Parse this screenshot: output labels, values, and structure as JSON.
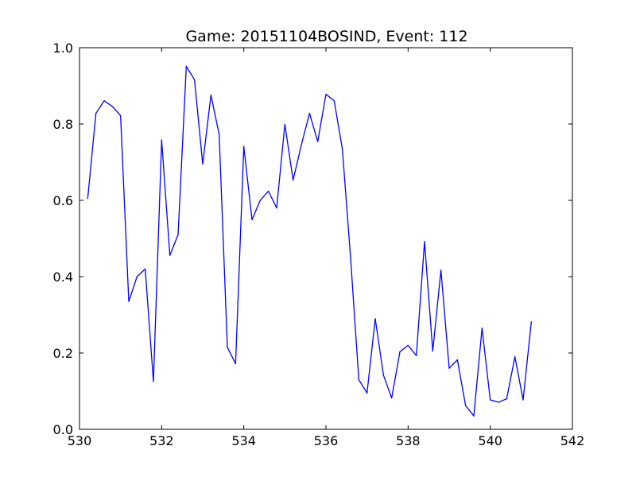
{
  "chart_data": {
    "type": "line",
    "title": "Game: 20151104BOSIND, Event: 112",
    "xlabel": "",
    "ylabel": "",
    "xlim": [
      530,
      542
    ],
    "ylim": [
      0.0,
      1.0
    ],
    "x_ticks": [
      "530",
      "532",
      "534",
      "536",
      "538",
      "540",
      "542"
    ],
    "y_ticks": [
      "0.0",
      "0.2",
      "0.4",
      "0.6",
      "0.8",
      "1.0"
    ],
    "grid": false,
    "series": [
      {
        "color": "#0000ff",
        "x": [
          530.2,
          530.4,
          530.6,
          530.8,
          531.0,
          531.2,
          531.4,
          531.6,
          531.8,
          532.0,
          532.2,
          532.4,
          532.6,
          532.8,
          533.0,
          533.2,
          533.4,
          533.6,
          533.8,
          534.0,
          534.2,
          534.4,
          534.6,
          534.8,
          535.0,
          535.2,
          535.4,
          535.6,
          535.8,
          536.0,
          536.2,
          536.4,
          536.6,
          536.8,
          537.0,
          537.2,
          537.4,
          537.6,
          537.8,
          538.0,
          538.2,
          538.4,
          538.6,
          538.8,
          539.0,
          539.2,
          539.4,
          539.6,
          539.8,
          540.0,
          540.2,
          540.4,
          540.6,
          540.8,
          541.0
        ],
        "y": [
          0.605,
          0.828,
          0.861,
          0.846,
          0.822,
          0.335,
          0.4,
          0.42,
          0.125,
          0.758,
          0.456,
          0.51,
          0.951,
          0.916,
          0.695,
          0.876,
          0.773,
          0.215,
          0.172,
          0.741,
          0.549,
          0.6,
          0.624,
          0.58,
          0.799,
          0.653,
          0.745,
          0.828,
          0.754,
          0.878,
          0.861,
          0.734,
          0.449,
          0.13,
          0.095,
          0.29,
          0.142,
          0.082,
          0.203,
          0.22,
          0.193,
          0.492,
          0.205,
          0.417,
          0.16,
          0.182,
          0.062,
          0.035,
          0.265,
          0.077,
          0.071,
          0.08,
          0.19,
          0.077,
          0.282
        ]
      }
    ]
  }
}
